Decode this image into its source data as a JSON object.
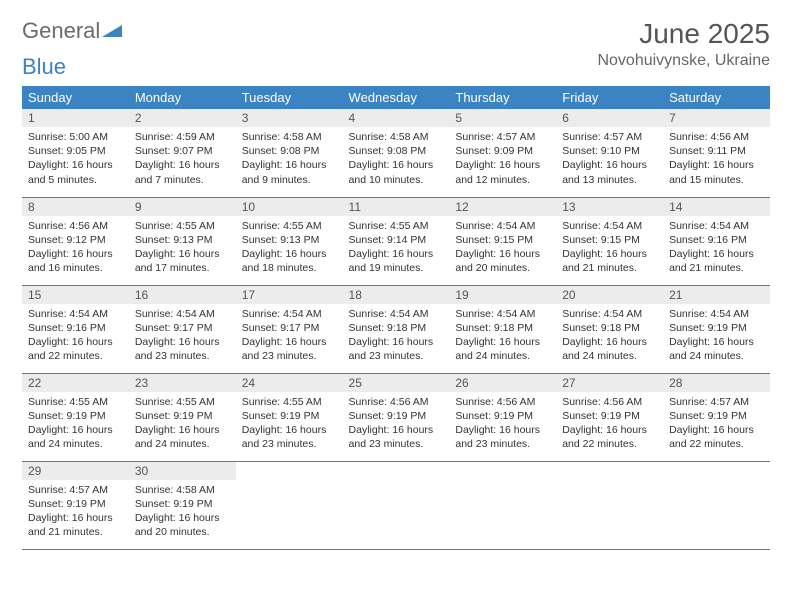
{
  "logo": {
    "part1": "General",
    "part2": "Blue"
  },
  "title": "June 2025",
  "location": "Novohuivynske, Ukraine",
  "colors": {
    "header_bg": "#3c83c4",
    "header_text": "#ffffff",
    "daynum_bg": "#ececec",
    "border": "#3c83c4",
    "text": "#333333",
    "title_text": "#555555",
    "logo_gray": "#6b6b6b",
    "logo_blue": "#3c83c4"
  },
  "typography": {
    "title_fontsize": 28,
    "location_fontsize": 16,
    "header_fontsize": 13,
    "daynum_fontsize": 12,
    "body_fontsize": 10.5
  },
  "weekdays": [
    "Sunday",
    "Monday",
    "Tuesday",
    "Wednesday",
    "Thursday",
    "Friday",
    "Saturday"
  ],
  "days": [
    {
      "n": "1",
      "sunrise": "5:00 AM",
      "sunset": "9:05 PM",
      "daylight": "16 hours and 5 minutes."
    },
    {
      "n": "2",
      "sunrise": "4:59 AM",
      "sunset": "9:07 PM",
      "daylight": "16 hours and 7 minutes."
    },
    {
      "n": "3",
      "sunrise": "4:58 AM",
      "sunset": "9:08 PM",
      "daylight": "16 hours and 9 minutes."
    },
    {
      "n": "4",
      "sunrise": "4:58 AM",
      "sunset": "9:08 PM",
      "daylight": "16 hours and 10 minutes."
    },
    {
      "n": "5",
      "sunrise": "4:57 AM",
      "sunset": "9:09 PM",
      "daylight": "16 hours and 12 minutes."
    },
    {
      "n": "6",
      "sunrise": "4:57 AM",
      "sunset": "9:10 PM",
      "daylight": "16 hours and 13 minutes."
    },
    {
      "n": "7",
      "sunrise": "4:56 AM",
      "sunset": "9:11 PM",
      "daylight": "16 hours and 15 minutes."
    },
    {
      "n": "8",
      "sunrise": "4:56 AM",
      "sunset": "9:12 PM",
      "daylight": "16 hours and 16 minutes."
    },
    {
      "n": "9",
      "sunrise": "4:55 AM",
      "sunset": "9:13 PM",
      "daylight": "16 hours and 17 minutes."
    },
    {
      "n": "10",
      "sunrise": "4:55 AM",
      "sunset": "9:13 PM",
      "daylight": "16 hours and 18 minutes."
    },
    {
      "n": "11",
      "sunrise": "4:55 AM",
      "sunset": "9:14 PM",
      "daylight": "16 hours and 19 minutes."
    },
    {
      "n": "12",
      "sunrise": "4:54 AM",
      "sunset": "9:15 PM",
      "daylight": "16 hours and 20 minutes."
    },
    {
      "n": "13",
      "sunrise": "4:54 AM",
      "sunset": "9:15 PM",
      "daylight": "16 hours and 21 minutes."
    },
    {
      "n": "14",
      "sunrise": "4:54 AM",
      "sunset": "9:16 PM",
      "daylight": "16 hours and 21 minutes."
    },
    {
      "n": "15",
      "sunrise": "4:54 AM",
      "sunset": "9:16 PM",
      "daylight": "16 hours and 22 minutes."
    },
    {
      "n": "16",
      "sunrise": "4:54 AM",
      "sunset": "9:17 PM",
      "daylight": "16 hours and 23 minutes."
    },
    {
      "n": "17",
      "sunrise": "4:54 AM",
      "sunset": "9:17 PM",
      "daylight": "16 hours and 23 minutes."
    },
    {
      "n": "18",
      "sunrise": "4:54 AM",
      "sunset": "9:18 PM",
      "daylight": "16 hours and 23 minutes."
    },
    {
      "n": "19",
      "sunrise": "4:54 AM",
      "sunset": "9:18 PM",
      "daylight": "16 hours and 24 minutes."
    },
    {
      "n": "20",
      "sunrise": "4:54 AM",
      "sunset": "9:18 PM",
      "daylight": "16 hours and 24 minutes."
    },
    {
      "n": "21",
      "sunrise": "4:54 AM",
      "sunset": "9:19 PM",
      "daylight": "16 hours and 24 minutes."
    },
    {
      "n": "22",
      "sunrise": "4:55 AM",
      "sunset": "9:19 PM",
      "daylight": "16 hours and 24 minutes."
    },
    {
      "n": "23",
      "sunrise": "4:55 AM",
      "sunset": "9:19 PM",
      "daylight": "16 hours and 24 minutes."
    },
    {
      "n": "24",
      "sunrise": "4:55 AM",
      "sunset": "9:19 PM",
      "daylight": "16 hours and 23 minutes."
    },
    {
      "n": "25",
      "sunrise": "4:56 AM",
      "sunset": "9:19 PM",
      "daylight": "16 hours and 23 minutes."
    },
    {
      "n": "26",
      "sunrise": "4:56 AM",
      "sunset": "9:19 PM",
      "daylight": "16 hours and 23 minutes."
    },
    {
      "n": "27",
      "sunrise": "4:56 AM",
      "sunset": "9:19 PM",
      "daylight": "16 hours and 22 minutes."
    },
    {
      "n": "28",
      "sunrise": "4:57 AM",
      "sunset": "9:19 PM",
      "daylight": "16 hours and 22 minutes."
    },
    {
      "n": "29",
      "sunrise": "4:57 AM",
      "sunset": "9:19 PM",
      "daylight": "16 hours and 21 minutes."
    },
    {
      "n": "30",
      "sunrise": "4:58 AM",
      "sunset": "9:19 PM",
      "daylight": "16 hours and 20 minutes."
    }
  ],
  "labels": {
    "sunrise": "Sunrise: ",
    "sunset": "Sunset: ",
    "daylight": "Daylight: "
  }
}
